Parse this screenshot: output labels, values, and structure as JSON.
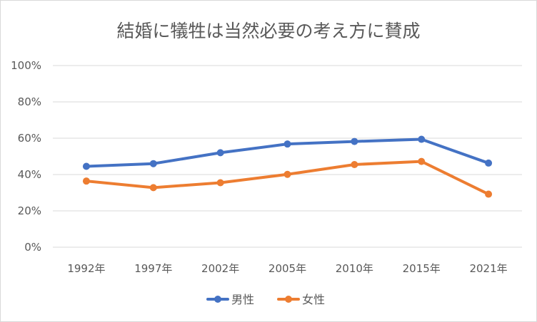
{
  "chart_data": {
    "type": "line",
    "title": "結婚に犠牲は当然必要の考え方に賛成",
    "categories": [
      "1992年",
      "1997年",
      "2002年",
      "2005年",
      "2010年",
      "2015年",
      "2021年"
    ],
    "series": [
      {
        "name": "男性",
        "values": [
          44.5,
          46.0,
          52.0,
          56.8,
          58.2,
          59.4,
          46.3
        ],
        "color": "#4472c4"
      },
      {
        "name": "女性",
        "values": [
          36.4,
          32.8,
          35.5,
          40.1,
          45.5,
          47.2,
          29.2
        ],
        "color": "#ed7d31"
      }
    ],
    "ylim": [
      0,
      100
    ],
    "yticks": [
      "0%",
      "20%",
      "40%",
      "60%",
      "80%",
      "100%"
    ],
    "ytick_values": [
      0,
      20,
      40,
      60,
      80,
      100
    ],
    "grid": true,
    "legend_position": "bottom"
  }
}
